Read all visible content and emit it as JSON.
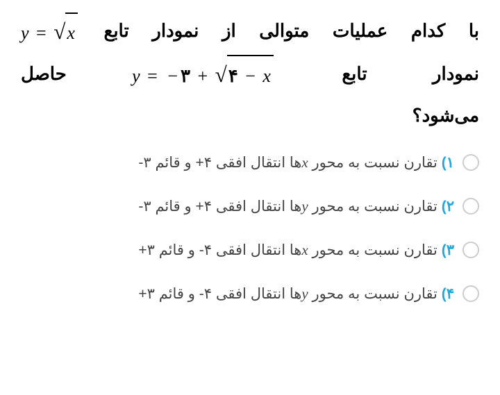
{
  "question": {
    "line1_text_before": "با کدام عملیات متوالی از نمودار تابع",
    "line2_text_before": "نمودار تابع",
    "line2_text_after": "حاصل",
    "line3_text": "می‌شود؟",
    "eq1_y": "y",
    "eq1_equals": "=",
    "eq1_sqrt_x": "x",
    "eq2_y": "y",
    "eq2_equals": "=",
    "eq2_neg": "−",
    "eq2_three": "۳",
    "eq2_plus": "+",
    "eq2_four": "۴",
    "eq2_minus": "−",
    "eq2_x": "x"
  },
  "options": [
    {
      "num": "۱)",
      "text_before": "تقارن نسبت به محور ",
      "var": "x",
      "text_after": "ها انتقال افقی ۴+ و قائم ۳-"
    },
    {
      "num": "۲)",
      "text_before": "تقارن نسبت به محور ",
      "var": "y",
      "text_after": "ها انتقال افقی ۴+ و قائم ۳-"
    },
    {
      "num": "۳)",
      "text_before": "تقارن نسبت به محور ",
      "var": "x",
      "text_after": "ها انتقال افقی ۴- و قائم ۳+"
    },
    {
      "num": "۴)",
      "text_before": "تقارن نسبت به محور ",
      "var": "y",
      "text_after": "ها انتقال افقی ۴- و قائم ۳+"
    }
  ],
  "colors": {
    "option_num": "#1ca8dd",
    "text": "#333333",
    "radio_border": "#cccccc",
    "background": "#ffffff"
  }
}
